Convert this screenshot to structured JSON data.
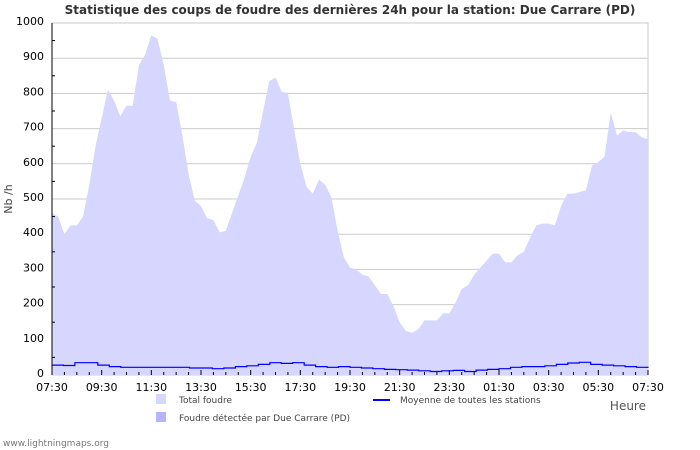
{
  "chart_data": {
    "type": "area",
    "title": "Statistique des coups de foudre des dernières 24h pour la station: Due Carrare (PD)",
    "xlabel": "Heure",
    "ylabel": "Nb /h",
    "ylim": [
      0,
      1000
    ],
    "yticks": [
      "0",
      "100",
      "200",
      "300",
      "400",
      "500",
      "600",
      "700",
      "800",
      "900",
      "1000"
    ],
    "xticks": [
      "07:30",
      "09:30",
      "11:30",
      "13:30",
      "15:30",
      "17:30",
      "19:30",
      "21:30",
      "23:30",
      "01:30",
      "03:30",
      "05:30",
      "07:30"
    ],
    "grid": true,
    "colors": {
      "total": "#d6d6ff",
      "station": "#b4b4ff",
      "average": "#0000ff"
    },
    "series": [
      {
        "name": "Total foudre",
        "step_minutes": 15,
        "values": [
          460,
          450,
          400,
          425,
          425,
          450,
          540,
          650,
          730,
          810,
          780,
          735,
          765,
          765,
          880,
          910,
          965,
          955,
          880,
          780,
          775,
          680,
          570,
          495,
          480,
          445,
          440,
          405,
          410,
          460,
          510,
          560,
          620,
          660,
          750,
          835,
          845,
          805,
          800,
          700,
          600,
          535,
          515,
          555,
          540,
          505,
          410,
          335,
          305,
          300,
          285,
          280,
          255,
          230,
          230,
          195,
          150,
          125,
          120,
          130,
          155,
          155,
          155,
          175,
          175,
          205,
          245,
          255,
          285,
          305,
          325,
          345,
          345,
          320,
          320,
          340,
          350,
          390,
          425,
          430,
          430,
          425,
          480,
          515,
          515,
          520,
          525,
          595,
          605,
          620,
          745,
          680,
          695,
          690,
          690,
          675,
          670
        ]
      },
      {
        "name": "Foudre détectée par Due Carrare (PD)",
        "values": []
      },
      {
        "name": "Moyenne de toutes les stations",
        "step_minutes": 30,
        "values": [
          28,
          27,
          35,
          35,
          28,
          24,
          22,
          22,
          22,
          22,
          22,
          22,
          20,
          20,
          18,
          20,
          24,
          26,
          30,
          35,
          33,
          35,
          28,
          24,
          22,
          24,
          22,
          20,
          18,
          16,
          15,
          14,
          12,
          10,
          12,
          13,
          10,
          14,
          16,
          18,
          22,
          24,
          24,
          26,
          30,
          34,
          36,
          30,
          28,
          26,
          24,
          22,
          20
        ]
      }
    ],
    "legend": [
      "Total foudre",
      "Moyenne de toutes les stations",
      "Foudre détectée par Due Carrare (PD)"
    ],
    "legend_position": "bottom"
  },
  "footer": "www.lightningmaps.org"
}
